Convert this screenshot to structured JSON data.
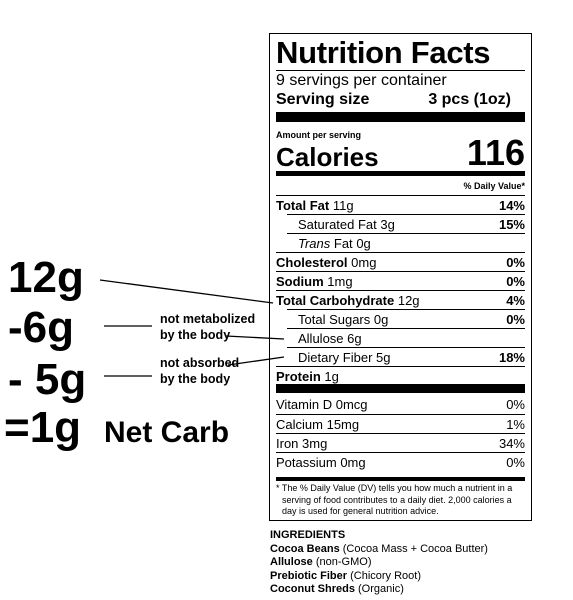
{
  "label": {
    "title": "Nutrition Facts",
    "servings": "9 servings per container",
    "serving_size_label": "Serving size",
    "serving_size": "3 pcs (1oz)",
    "amount_per_serving": "Amount per serving",
    "calories_label": "Calories",
    "calories": "116",
    "dv_header": "% Daily Value*",
    "rows": [
      {
        "name": "Total Fat",
        "amount": "11g",
        "dv": "14%",
        "sub": [
          {
            "name": "Saturated Fat",
            "amount": "3g",
            "dv": "15%"
          },
          {
            "name_italic": "Trans",
            "name": "Fat",
            "amount": "0g"
          }
        ]
      },
      {
        "name": "Cholesterol",
        "amount": "0mg",
        "dv": "0%"
      },
      {
        "name": "Sodium",
        "amount": "1mg",
        "dv": "0%"
      },
      {
        "name": "Total Carbohydrate",
        "amount": "12g",
        "dv": "4%",
        "sub": [
          {
            "name": "Total Sugars",
            "amount": "0g",
            "dv": "0%"
          },
          {
            "name": "Allulose",
            "amount": "6g"
          },
          {
            "name": "Dietary Fiber",
            "amount": "5g",
            "dv": "18%"
          }
        ]
      },
      {
        "name": "Protein",
        "amount": "1g"
      }
    ],
    "vitamins": [
      {
        "name": "Vitamin D",
        "amount": "0mcg",
        "dv": "0%"
      },
      {
        "name": "Calcium",
        "amount": "15mg",
        "dv": "1%"
      },
      {
        "name": "Iron",
        "amount": "3mg",
        "dv": "34%"
      },
      {
        "name": "Potassium",
        "amount": "0mg",
        "dv": "0%"
      }
    ],
    "footnote": "* The % Daily Value (DV) tells you how much a nutrient in a serving of food contributes to a daily diet. 2,000 calories a day is used for general nutrition advice."
  },
  "ingredients": {
    "title": "INGREDIENTS",
    "items": [
      {
        "name": "Cocoa Beans",
        "detail": "(Cocoa Mass + Cocoa Butter)"
      },
      {
        "name": "Allulose",
        "detail": "(non-GMO)"
      },
      {
        "name": "Prebiotic Fiber",
        "detail": "(Chicory Root)"
      },
      {
        "name": "Coconut Shreds",
        "detail": "(Organic)"
      }
    ]
  },
  "net_carb": {
    "total": "12g",
    "minus_allulose": "-6g",
    "minus_fiber": "- 5g",
    "result": "=1g",
    "result_label": "Net Carb",
    "note_allulose": [
      "not metabolized",
      "by the body"
    ],
    "note_fiber": [
      "not absorbed",
      "by the body"
    ]
  }
}
